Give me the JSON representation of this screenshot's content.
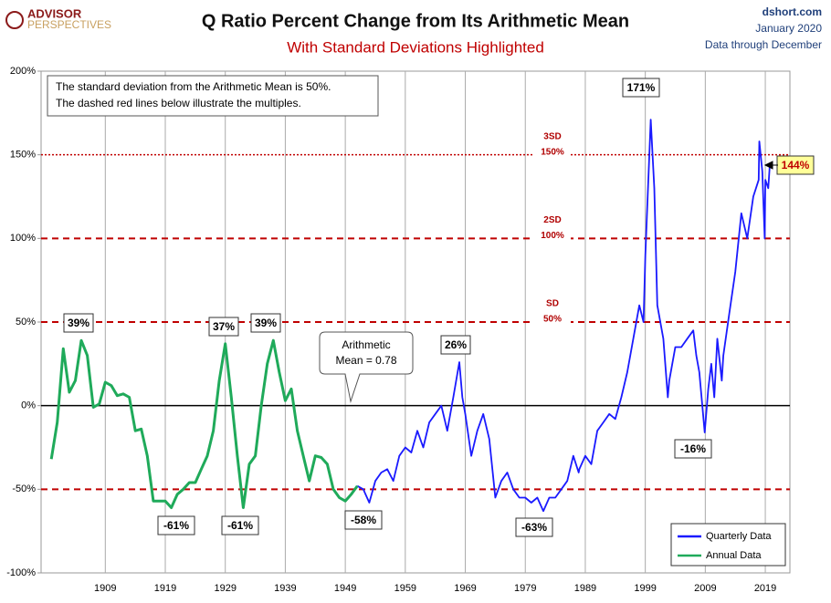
{
  "chart_data": {
    "type": "line",
    "title": "Q Ratio Percent Change from Its Arithmetic Mean",
    "subtitle": "With Standard Deviations Highlighted",
    "logo": [
      "ADVISOR",
      "PERSPECTIVES"
    ],
    "source": [
      "dshort.com",
      "January 2020",
      "Data through December"
    ],
    "note": [
      "The standard deviation from the Arithmetic Mean is 50%.",
      "The dashed red lines below illustrate the multiples."
    ],
    "mean_label": [
      "Arithmetic",
      "Mean = 0.78"
    ],
    "xlim": [
      1898.3,
      2023.1
    ],
    "xticks": [
      1909,
      1919,
      1929,
      1939,
      1949,
      1959,
      1969,
      1979,
      1989,
      1999,
      2009,
      2019
    ],
    "ylim": [
      -100,
      200
    ],
    "yticks": [
      {
        "value": -100,
        "label": "-100%"
      },
      {
        "value": -50,
        "label": "-50%"
      },
      {
        "value": 0,
        "label": "0%"
      },
      {
        "value": 50,
        "label": "50%"
      },
      {
        "value": 100,
        "label": "100%"
      },
      {
        "value": 150,
        "label": "150%"
      },
      {
        "value": 200,
        "label": "200%"
      }
    ],
    "grid": true,
    "reference_lines": [
      {
        "value": 150,
        "label": [
          "3SD",
          "150%"
        ],
        "style": "dotted",
        "color": "#c00000"
      },
      {
        "value": 100,
        "label": [
          "2SD",
          "100%"
        ],
        "style": "dashed",
        "color": "#c00000"
      },
      {
        "value": 50,
        "label": [
          "SD",
          "50%"
        ],
        "style": "dashed",
        "color": "#c00000"
      },
      {
        "value": 0,
        "style": "solid",
        "color": "#000000"
      },
      {
        "value": -50,
        "style": "dashed",
        "color": "#c00000"
      }
    ],
    "series": [
      {
        "name": "Quarterly Data",
        "color": "#1a1aff",
        "x": [
          1951,
          1952,
          1953,
          1954,
          1955,
          1956,
          1957,
          1958,
          1959,
          1960,
          1961,
          1962,
          1963,
          1964,
          1965,
          1966,
          1967,
          1968,
          1968.5,
          1969,
          1970,
          1971,
          1972,
          1973,
          1974,
          1975,
          1976,
          1977,
          1978,
          1979,
          1980,
          1981,
          1982,
          1983,
          1984,
          1985,
          1986,
          1987,
          1987.9,
          1988,
          1989,
          1990,
          1991,
          1992,
          1993,
          1994,
          1995,
          1996,
          1997,
          1998,
          1998.7,
          1999,
          1999.9,
          2000.5,
          2001,
          2002,
          2002.75,
          2003,
          2004,
          2005,
          2006,
          2007,
          2007.5,
          2008,
          2008.9,
          2009.5,
          2010,
          2010.5,
          2011,
          2011.75,
          2012,
          2013,
          2014,
          2015,
          2016,
          2017,
          2017.9,
          2018,
          2018.5,
          2018.9,
          2019,
          2019.5,
          2019.75
        ],
        "values": [
          -48,
          -50,
          -58,
          -45,
          -40,
          -38,
          -45,
          -30,
          -25,
          -28,
          -15,
          -25,
          -10,
          -5,
          0,
          -15,
          5,
          26,
          5,
          -5,
          -30,
          -15,
          -5,
          -20,
          -55,
          -45,
          -40,
          -50,
          -55,
          -55,
          -58,
          -55,
          -63,
          -55,
          -55,
          -50,
          -45,
          -30,
          -40,
          -38,
          -30,
          -35,
          -15,
          -10,
          -5,
          -8,
          5,
          20,
          40,
          60,
          50,
          90,
          171,
          130,
          60,
          40,
          5,
          15,
          35,
          35,
          40,
          45,
          30,
          20,
          -16,
          10,
          25,
          5,
          40,
          15,
          30,
          55,
          80,
          115,
          100,
          125,
          135,
          158,
          140,
          100,
          135,
          130,
          144
        ]
      },
      {
        "name": "Annual Data",
        "color": "#1faa5a",
        "x": [
          1900,
          1901,
          1902,
          1903,
          1904,
          1905,
          1906,
          1907,
          1908,
          1909,
          1910,
          1911,
          1912,
          1913,
          1914,
          1915,
          1916,
          1917,
          1918,
          1919,
          1920,
          1921,
          1922,
          1923,
          1924,
          1925,
          1926,
          1927,
          1928,
          1929,
          1930,
          1931,
          1932,
          1933,
          1934,
          1935,
          1936,
          1937,
          1938,
          1939,
          1940,
          1941,
          1942,
          1943,
          1944,
          1945,
          1946,
          1947,
          1948,
          1949,
          1950,
          1951
        ],
        "values": [
          -32,
          -10,
          34,
          8,
          15,
          39,
          30,
          -1,
          1,
          14,
          12,
          6,
          7,
          5,
          -15,
          -14,
          -30,
          -57,
          -57,
          -57,
          -61,
          -53,
          -50,
          -46,
          -46,
          -38,
          -30,
          -15,
          15,
          37,
          5,
          -30,
          -61,
          -35,
          -30,
          0,
          25,
          39,
          20,
          3,
          10,
          -15,
          -30,
          -45,
          -30,
          -31,
          -35,
          -50,
          -55,
          -57,
          -53,
          -48
        ]
      }
    ],
    "annotations": [
      "39%",
      "37%",
      "39%",
      "-61%",
      "-61%",
      "-58%",
      "26%",
      "-63%",
      "171%",
      "-16%",
      "144%"
    ]
  }
}
